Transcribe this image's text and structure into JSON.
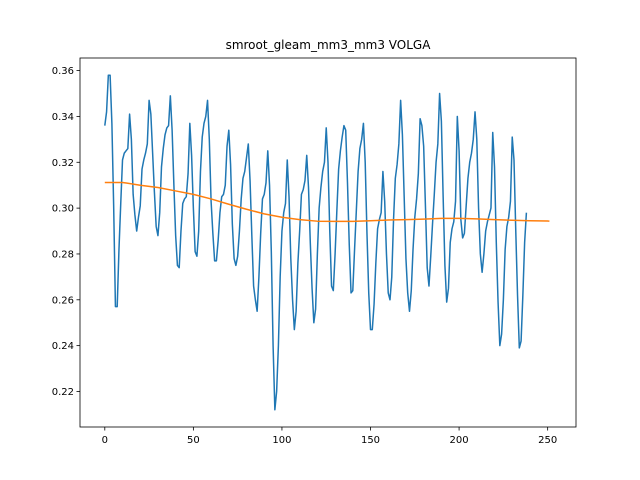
{
  "chart_data": {
    "type": "line",
    "title": "smroot_gleam_mm3_mm3 VOLGA",
    "xlabel": "",
    "ylabel": "",
    "xlim": [
      -14,
      266
    ],
    "ylim": [
      0.2045,
      0.3655
    ],
    "x_ticks": [
      0,
      50,
      100,
      150,
      200,
      250
    ],
    "y_ticks": [
      0.22,
      0.24,
      0.26,
      0.28,
      0.3,
      0.32,
      0.34,
      0.36
    ],
    "x_tick_labels": [
      "0",
      "50",
      "100",
      "150",
      "200",
      "250"
    ],
    "y_tick_labels": [
      "0.22",
      "0.24",
      "0.26",
      "0.28",
      "0.30",
      "0.32",
      "0.34",
      "0.36"
    ],
    "grid": false,
    "legend": "none",
    "series": [
      {
        "color": "#1f77b4",
        "points": [
          [
            0,
            0.336
          ],
          [
            1,
            0.342
          ],
          [
            2,
            0.358
          ],
          [
            3,
            0.358
          ],
          [
            4,
            0.337
          ],
          [
            5,
            0.301
          ],
          [
            6,
            0.257
          ],
          [
            7,
            0.257
          ],
          [
            8,
            0.282
          ],
          [
            9,
            0.302
          ],
          [
            10,
            0.321
          ],
          [
            11,
            0.324
          ],
          [
            12,
            0.325
          ],
          [
            13,
            0.326
          ],
          [
            14,
            0.341
          ],
          [
            15,
            0.33
          ],
          [
            16,
            0.306
          ],
          [
            17,
            0.297
          ],
          [
            18,
            0.29
          ],
          [
            19,
            0.296
          ],
          [
            20,
            0.301
          ],
          [
            21,
            0.317
          ],
          [
            22,
            0.321
          ],
          [
            23,
            0.324
          ],
          [
            24,
            0.328
          ],
          [
            25,
            0.347
          ],
          [
            26,
            0.341
          ],
          [
            27,
            0.324
          ],
          [
            28,
            0.307
          ],
          [
            29,
            0.292
          ],
          [
            30,
            0.288
          ],
          [
            31,
            0.298
          ],
          [
            32,
            0.318
          ],
          [
            33,
            0.326
          ],
          [
            34,
            0.332
          ],
          [
            35,
            0.335
          ],
          [
            36,
            0.336
          ],
          [
            37,
            0.349
          ],
          [
            38,
            0.334
          ],
          [
            39,
            0.31
          ],
          [
            40,
            0.288
          ],
          [
            41,
            0.275
          ],
          [
            42,
            0.274
          ],
          [
            43,
            0.29
          ],
          [
            44,
            0.302
          ],
          [
            45,
            0.304
          ],
          [
            46,
            0.305
          ],
          [
            47,
            0.315
          ],
          [
            48,
            0.337
          ],
          [
            49,
            0.323
          ],
          [
            50,
            0.3
          ],
          [
            51,
            0.281
          ],
          [
            52,
            0.279
          ],
          [
            53,
            0.29
          ],
          [
            54,
            0.316
          ],
          [
            55,
            0.331
          ],
          [
            56,
            0.337
          ],
          [
            57,
            0.34
          ],
          [
            58,
            0.347
          ],
          [
            59,
            0.33
          ],
          [
            60,
            0.303
          ],
          [
            61,
            0.289
          ],
          [
            62,
            0.277
          ],
          [
            63,
            0.277
          ],
          [
            64,
            0.286
          ],
          [
            65,
            0.298
          ],
          [
            66,
            0.305
          ],
          [
            67,
            0.306
          ],
          [
            68,
            0.31
          ],
          [
            69,
            0.327
          ],
          [
            70,
            0.334
          ],
          [
            71,
            0.319
          ],
          [
            72,
            0.293
          ],
          [
            73,
            0.278
          ],
          [
            74,
            0.275
          ],
          [
            75,
            0.279
          ],
          [
            76,
            0.29
          ],
          [
            77,
            0.304
          ],
          [
            78,
            0.313
          ],
          [
            79,
            0.316
          ],
          [
            80,
            0.322
          ],
          [
            81,
            0.328
          ],
          [
            82,
            0.312
          ],
          [
            83,
            0.288
          ],
          [
            84,
            0.266
          ],
          [
            85,
            0.26
          ],
          [
            86,
            0.255
          ],
          [
            87,
            0.27
          ],
          [
            88,
            0.289
          ],
          [
            89,
            0.304
          ],
          [
            90,
            0.306
          ],
          [
            91,
            0.311
          ],
          [
            92,
            0.325
          ],
          [
            93,
            0.31
          ],
          [
            94,
            0.281
          ],
          [
            95,
            0.24
          ],
          [
            96,
            0.212
          ],
          [
            97,
            0.22
          ],
          [
            98,
            0.24
          ],
          [
            99,
            0.27
          ],
          [
            100,
            0.29
          ],
          [
            101,
            0.298
          ],
          [
            102,
            0.302
          ],
          [
            103,
            0.321
          ],
          [
            104,
            0.305
          ],
          [
            105,
            0.278
          ],
          [
            106,
            0.26
          ],
          [
            107,
            0.247
          ],
          [
            108,
            0.255
          ],
          [
            109,
            0.276
          ],
          [
            110,
            0.29
          ],
          [
            111,
            0.306
          ],
          [
            112,
            0.308
          ],
          [
            113,
            0.312
          ],
          [
            114,
            0.323
          ],
          [
            115,
            0.309
          ],
          [
            116,
            0.285
          ],
          [
            117,
            0.265
          ],
          [
            118,
            0.25
          ],
          [
            119,
            0.256
          ],
          [
            120,
            0.28
          ],
          [
            121,
            0.3
          ],
          [
            122,
            0.309
          ],
          [
            123,
            0.316
          ],
          [
            124,
            0.32
          ],
          [
            125,
            0.335
          ],
          [
            126,
            0.32
          ],
          [
            127,
            0.29
          ],
          [
            128,
            0.266
          ],
          [
            129,
            0.264
          ],
          [
            130,
            0.28
          ],
          [
            131,
            0.299
          ],
          [
            132,
            0.317
          ],
          [
            133,
            0.325
          ],
          [
            134,
            0.331
          ],
          [
            135,
            0.336
          ],
          [
            136,
            0.334
          ],
          [
            137,
            0.311
          ],
          [
            138,
            0.284
          ],
          [
            139,
            0.263
          ],
          [
            140,
            0.264
          ],
          [
            141,
            0.282
          ],
          [
            142,
            0.299
          ],
          [
            143,
            0.316
          ],
          [
            144,
            0.326
          ],
          [
            145,
            0.33
          ],
          [
            146,
            0.337
          ],
          [
            147,
            0.32
          ],
          [
            148,
            0.289
          ],
          [
            149,
            0.263
          ],
          [
            150,
            0.247
          ],
          [
            151,
            0.247
          ],
          [
            152,
            0.258
          ],
          [
            153,
            0.276
          ],
          [
            154,
            0.291
          ],
          [
            155,
            0.295
          ],
          [
            156,
            0.298
          ],
          [
            157,
            0.316
          ],
          [
            158,
            0.303
          ],
          [
            159,
            0.28
          ],
          [
            160,
            0.263
          ],
          [
            161,
            0.26
          ],
          [
            162,
            0.27
          ],
          [
            163,
            0.295
          ],
          [
            164,
            0.313
          ],
          [
            165,
            0.319
          ],
          [
            166,
            0.328
          ],
          [
            167,
            0.347
          ],
          [
            168,
            0.332
          ],
          [
            169,
            0.305
          ],
          [
            170,
            0.278
          ],
          [
            171,
            0.263
          ],
          [
            172,
            0.255
          ],
          [
            173,
            0.264
          ],
          [
            174,
            0.282
          ],
          [
            175,
            0.296
          ],
          [
            176,
            0.304
          ],
          [
            177,
            0.315
          ],
          [
            178,
            0.339
          ],
          [
            179,
            0.336
          ],
          [
            180,
            0.327
          ],
          [
            181,
            0.301
          ],
          [
            182,
            0.274
          ],
          [
            183,
            0.266
          ],
          [
            184,
            0.279
          ],
          [
            185,
            0.293
          ],
          [
            186,
            0.306
          ],
          [
            187,
            0.32
          ],
          [
            188,
            0.328
          ],
          [
            189,
            0.35
          ],
          [
            190,
            0.338
          ],
          [
            191,
            0.305
          ],
          [
            192,
            0.275
          ],
          [
            193,
            0.259
          ],
          [
            194,
            0.265
          ],
          [
            195,
            0.285
          ],
          [
            196,
            0.291
          ],
          [
            197,
            0.294
          ],
          [
            198,
            0.303
          ],
          [
            199,
            0.34
          ],
          [
            200,
            0.325
          ],
          [
            201,
            0.295
          ],
          [
            202,
            0.287
          ],
          [
            203,
            0.289
          ],
          [
            204,
            0.301
          ],
          [
            205,
            0.313
          ],
          [
            206,
            0.32
          ],
          [
            207,
            0.324
          ],
          [
            208,
            0.33
          ],
          [
            209,
            0.342
          ],
          [
            210,
            0.33
          ],
          [
            211,
            0.3
          ],
          [
            212,
            0.28
          ],
          [
            213,
            0.272
          ],
          [
            214,
            0.28
          ],
          [
            215,
            0.29
          ],
          [
            216,
            0.294
          ],
          [
            217,
            0.297
          ],
          [
            218,
            0.3
          ],
          [
            219,
            0.333
          ],
          [
            220,
            0.318
          ],
          [
            221,
            0.285
          ],
          [
            222,
            0.259
          ],
          [
            223,
            0.24
          ],
          [
            224,
            0.245
          ],
          [
            225,
            0.26
          ],
          [
            226,
            0.282
          ],
          [
            227,
            0.292
          ],
          [
            228,
            0.296
          ],
          [
            229,
            0.303
          ],
          [
            230,
            0.331
          ],
          [
            231,
            0.321
          ],
          [
            232,
            0.29
          ],
          [
            233,
            0.262
          ],
          [
            234,
            0.239
          ],
          [
            235,
            0.242
          ],
          [
            236,
            0.262
          ],
          [
            237,
            0.285
          ],
          [
            238,
            0.298
          ]
        ]
      },
      {
        "color": "#ff7f0e",
        "points": [
          [
            0,
            0.3112
          ],
          [
            10,
            0.3112
          ],
          [
            20,
            0.31
          ],
          [
            30,
            0.309
          ],
          [
            40,
            0.3075
          ],
          [
            50,
            0.306
          ],
          [
            60,
            0.304
          ],
          [
            70,
            0.3017
          ],
          [
            80,
            0.2995
          ],
          [
            90,
            0.2975
          ],
          [
            100,
            0.296
          ],
          [
            110,
            0.295
          ],
          [
            120,
            0.2943
          ],
          [
            130,
            0.2942
          ],
          [
            140,
            0.2942
          ],
          [
            150,
            0.2945
          ],
          [
            160,
            0.2948
          ],
          [
            170,
            0.295
          ],
          [
            180,
            0.2952
          ],
          [
            190,
            0.2955
          ],
          [
            200,
            0.2955
          ],
          [
            210,
            0.2953
          ],
          [
            220,
            0.295
          ],
          [
            230,
            0.2947
          ],
          [
            240,
            0.2945
          ],
          [
            250,
            0.2944
          ],
          [
            251,
            0.2943
          ]
        ]
      }
    ]
  }
}
